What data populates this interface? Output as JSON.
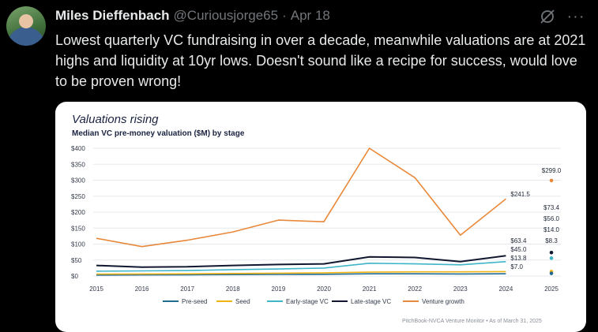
{
  "tweet": {
    "author_name": "Miles Dieffenbach",
    "handle": "@Curiousjorge65",
    "separator": "·",
    "date": "Apr 18",
    "more_label": "···",
    "text": "Lowest quarterly VC fundraising in over a decade, meanwhile valuations are at 2021 highs and liquidity at 10yr lows. Doesn't sound like a recipe for success, would love to be proven wrong!"
  },
  "chart_data": {
    "type": "line",
    "title": "Valuations rising",
    "subtitle": "Median VC pre-money valuation ($M) by stage",
    "source": "PitchBook-NVCA Venture Monitor  •  As of March 31, 2025",
    "x": [
      2015,
      2016,
      2017,
      2018,
      2019,
      2020,
      2021,
      2022,
      2023,
      2024
    ],
    "x_ticks": [
      "2015",
      "2016",
      "2017",
      "2018",
      "2019",
      "2020",
      "2021",
      "2022",
      "2023",
      "2024",
      "2025"
    ],
    "y_ticks": [
      "$0",
      "$50",
      "$100",
      "$150",
      "$200",
      "$250",
      "$300",
      "$350",
      "$400"
    ],
    "ylim": [
      0,
      400
    ],
    "grid": true,
    "series": [
      {
        "name": "Pre-seed",
        "color": "#1f6b94",
        "values": [
          3,
          3.5,
          4,
          4.5,
          5,
          5.5,
          7,
          7,
          6.5,
          7.0
        ]
      },
      {
        "name": "Seed",
        "color": "#f0b418",
        "values": [
          6,
          6.5,
          7,
          8,
          9,
          10,
          12,
          13,
          13,
          13.8
        ]
      },
      {
        "name": "Early-stage VC",
        "color": "#3fb5c8",
        "values": [
          15,
          16,
          17,
          20,
          22,
          25,
          40,
          38,
          35,
          45.0
        ]
      },
      {
        "name": "Late-stage VC",
        "color": "#10172f",
        "values": [
          33,
          28,
          29,
          33,
          36,
          38,
          60,
          58,
          45,
          63.4
        ]
      },
      {
        "name": "Venture growth",
        "color": "#e8883a",
        "values": [
          118,
          92,
          112,
          138,
          175,
          170,
          400,
          308,
          128,
          241.5
        ]
      }
    ],
    "end_labels": [
      {
        "series": "Venture growth",
        "text": "$241.5",
        "value": 241.5
      },
      {
        "series": "Late-stage VC",
        "text": "$63.4",
        "value": 63.4
      },
      {
        "series": "Early-stage VC",
        "text": "$45.0",
        "value": 45.0
      },
      {
        "series": "Seed",
        "text": "$13.8",
        "value": 13.8
      },
      {
        "series": "Pre-seed",
        "text": "$7.0",
        "value": 7.0
      }
    ],
    "points_2025": [
      {
        "series": "Venture growth",
        "text": "$299.0",
        "value": 299.0
      },
      {
        "series": "Late-stage VC",
        "text": "$73.4",
        "value": 73.4
      },
      {
        "series": "Early-stage VC",
        "text": "$56.0",
        "value": 56.0
      },
      {
        "series": "Seed",
        "text": "$14.0",
        "value": 14.0
      },
      {
        "series": "Pre-seed",
        "text": "$8.3",
        "value": 8.3
      }
    ]
  }
}
